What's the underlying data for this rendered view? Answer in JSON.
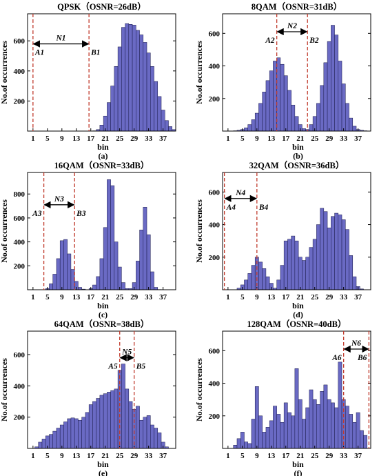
{
  "colors": {
    "bar_fill": "#6a6ac4",
    "bar_stroke": "#1a1a4a",
    "marker_line": "#c0392b",
    "arrow": "#000000"
  },
  "chart_data": [
    {
      "type": "bar",
      "title": "QPSK（OSNR=26dB）",
      "label": "(a)",
      "xlabel": "bin",
      "ylabel": "No.of occurrences",
      "ylim": [
        0,
        780
      ],
      "yticks": [
        "200",
        "400",
        "600"
      ],
      "xticks": [
        "1",
        "5",
        "9",
        "13",
        "17",
        "21",
        "25",
        "29",
        "33",
        "37"
      ],
      "grid": false,
      "values": [
        0,
        0,
        0,
        0,
        0,
        0,
        0,
        0,
        0,
        0,
        0,
        0,
        0,
        0,
        0,
        0,
        0,
        2,
        10,
        40,
        100,
        190,
        300,
        430,
        560,
        690,
        715,
        710,
        705,
        670,
        640,
        590,
        520,
        430,
        330,
        230,
        140,
        70,
        30,
        10
      ],
      "markers": [
        {
          "bin": 1,
          "label": "A1"
        },
        {
          "bin": 16.5,
          "label": "B1"
        }
      ],
      "interval": {
        "label": "N1",
        "y": 580
      }
    },
    {
      "type": "bar",
      "title": "8QAM（OSNR=31dB）",
      "label": "(b)",
      "xlabel": "bin",
      "ylabel": "No.of occurrences",
      "ylim": [
        0,
        720
      ],
      "yticks": [
        "200",
        "400",
        "600"
      ],
      "xticks": [
        "1",
        "5",
        "9",
        "13",
        "17",
        "21",
        "25",
        "29",
        "33",
        "37"
      ],
      "grid": false,
      "values": [
        0,
        0,
        2,
        5,
        10,
        20,
        40,
        70,
        110,
        170,
        240,
        310,
        370,
        430,
        450,
        410,
        340,
        250,
        160,
        90,
        40,
        15,
        10,
        40,
        90,
        170,
        280,
        420,
        550,
        650,
        590,
        430,
        290,
        170,
        80,
        30,
        10,
        5,
        2,
        0
      ],
      "markers": [
        {
          "bin": 14.5,
          "label": "A2"
        },
        {
          "bin": 23,
          "label": "B2"
        }
      ],
      "interval": {
        "label": "N2",
        "y": 610
      }
    },
    {
      "type": "bar",
      "title": "16QAM（OSNR=33dB）",
      "label": "(c)",
      "xlabel": "bin",
      "ylabel": "No.of occurrences",
      "ylim": [
        0,
        980
      ],
      "yticks": [
        "200",
        "400",
        "600",
        "800"
      ],
      "xticks": [
        "1",
        "5",
        "9",
        "13",
        "17",
        "21",
        "25",
        "29",
        "33",
        "37"
      ],
      "grid": false,
      "values": [
        0,
        0,
        0,
        0,
        10,
        50,
        130,
        260,
        410,
        420,
        300,
        170,
        70,
        20,
        5,
        0,
        10,
        40,
        110,
        260,
        520,
        920,
        870,
        400,
        190,
        60,
        10,
        10,
        60,
        240,
        500,
        690,
        460,
        150,
        20,
        2,
        0,
        0,
        0,
        0
      ],
      "markers": [
        {
          "bin": 4,
          "label": "A3"
        },
        {
          "bin": 12.5,
          "label": "B3"
        }
      ],
      "interval": {
        "label": "N3",
        "y": 710
      }
    },
    {
      "type": "bar",
      "title": "32QAM（OSNR=36dB）",
      "label": "(d)",
      "xlabel": "bin",
      "ylabel": "No.of occurrences",
      "ylim": [
        0,
        720
      ],
      "yticks": [
        "200",
        "400",
        "600"
      ],
      "xticks": [
        "1",
        "5",
        "9",
        "13",
        "17",
        "21",
        "25",
        "29",
        "33",
        "37"
      ],
      "grid": false,
      "values": [
        0,
        0,
        0,
        10,
        30,
        60,
        100,
        150,
        200,
        170,
        130,
        80,
        40,
        10,
        60,
        150,
        300,
        310,
        330,
        300,
        200,
        180,
        200,
        260,
        310,
        400,
        500,
        480,
        380,
        450,
        470,
        460,
        430,
        370,
        210,
        80,
        20,
        5,
        0,
        0
      ],
      "markers": [
        {
          "bin": 0,
          "label": "A4"
        },
        {
          "bin": 9,
          "label": "B4"
        }
      ],
      "interval": {
        "label": "N4",
        "y": 560
      }
    },
    {
      "type": "bar",
      "title": "64QAM（OSNR=38dB）",
      "label": "(e)",
      "xlabel": "bin",
      "ylabel": "No.of occurrences",
      "ylim": [
        0,
        750
      ],
      "yticks": [
        "200",
        "400",
        "600"
      ],
      "xticks": [
        "1",
        "5",
        "9",
        "13",
        "17",
        "21",
        "25",
        "29",
        "33",
        "37"
      ],
      "grid": false,
      "values": [
        0,
        10,
        40,
        60,
        80,
        90,
        110,
        130,
        150,
        170,
        190,
        195,
        190,
        180,
        200,
        230,
        280,
        300,
        320,
        340,
        350,
        360,
        370,
        380,
        500,
        540,
        380,
        300,
        250,
        270,
        180,
        200,
        210,
        150,
        130,
        100,
        40,
        10,
        0,
        0
      ],
      "markers": [
        {
          "bin": 25,
          "label": "A5"
        },
        {
          "bin": 29,
          "label": "B5"
        }
      ],
      "interval": {
        "label": "N5",
        "y": 580
      }
    },
    {
      "type": "bar",
      "title": "128QAM（OSNR=40dB）",
      "label": "(f)",
      "xlabel": "bin",
      "ylabel": "No.of occurrences",
      "ylim": [
        0,
        720
      ],
      "yticks": [
        "200",
        "400",
        "600"
      ],
      "xticks": [
        "1",
        "5",
        "9",
        "13",
        "17",
        "21",
        "25",
        "29",
        "33",
        "37"
      ],
      "grid": false,
      "values": [
        0,
        0,
        20,
        60,
        100,
        40,
        30,
        180,
        380,
        200,
        100,
        130,
        170,
        260,
        210,
        160,
        280,
        220,
        200,
        490,
        300,
        180,
        250,
        360,
        300,
        270,
        350,
        390,
        300,
        280,
        250,
        530,
        300,
        260,
        210,
        160,
        220,
        110,
        80,
        0
      ],
      "markers": [
        {
          "bin": 33,
          "label": "A6"
        },
        {
          "bin": 40,
          "label": "B6"
        }
      ],
      "interval": {
        "label": "N6",
        "y": 610
      }
    }
  ]
}
